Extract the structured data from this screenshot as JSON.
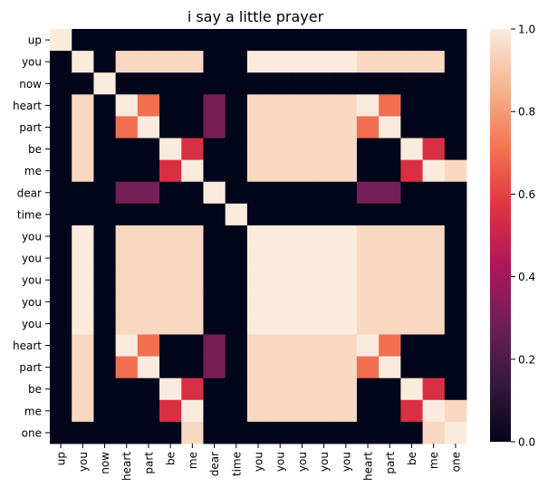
{
  "chart_data": {
    "type": "heatmap",
    "title": "i say a little prayer",
    "labels": [
      "up",
      "you",
      "now",
      "heart",
      "part",
      "be",
      "me",
      "dear",
      "time",
      "you",
      "you",
      "you",
      "you",
      "you",
      "heart",
      "part",
      "be",
      "me",
      "one"
    ],
    "value_range": [
      0,
      1.0
    ],
    "colorbar_ticks": [
      "0.0",
      "0.2",
      "0.4",
      "0.6",
      "0.8",
      "1.0"
    ],
    "colorbar_tick_values": [
      0,
      0.2,
      0.4,
      0.6,
      0.8,
      1.0
    ],
    "colormap": [
      "#03051a",
      "#36193e",
      "#701f57",
      "#ad1759",
      "#e13342",
      "#f37651",
      "#f6b48f",
      "#faebdd"
    ],
    "rows": [
      "z.................................",
      ".z.........................,......",
      "..zz..............................",
      "..zz..............................",
      ".z..zz..........z.................",
      ".z..zzz.....z...zz......z.........",
      ".z..z.zz..........................",
      ".z..zz.zzz........................",
      ".z.........zzz....................",
      ".z.........zz....z................",
      ".z.........z.z..z.................",
      ".z..z........zz...................",
      ".z..z..........zz.................",
      ".z..z..........z.z................",
      "..................................",
      ".z.........................zz.....",
      "..........................z.z.....",
      "..................................",
      ".................................z"
    ]
  }
}
